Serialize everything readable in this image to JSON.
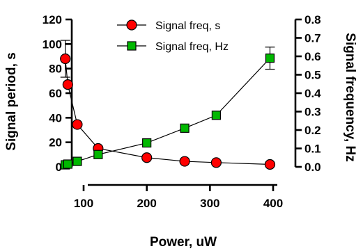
{
  "chart_data": {
    "type": "scatter",
    "xlabel": "Power, uW",
    "ylabel": "Signal period, s",
    "y2label": "Signal frequency,  Hz",
    "xlim": [
      50,
      400
    ],
    "ylim": [
      0,
      120
    ],
    "y2lim": [
      0,
      0.8
    ],
    "xticks": [
      100,
      200,
      300,
      400
    ],
    "yticks": [
      0,
      20,
      40,
      60,
      80,
      100,
      120
    ],
    "y2ticks": [
      "0.0",
      "0.1",
      "0.2",
      "0.3",
      "0.4",
      "0.5",
      "0.6",
      "0.7",
      "0.8"
    ],
    "grid": false,
    "legend_position": "top-center",
    "series": [
      {
        "name": "Signal freq, s",
        "axis": "left",
        "marker": "circle",
        "color": "#ff0000",
        "x": [
          71,
          75,
          90,
          123,
          200,
          260,
          310,
          395
        ],
        "y": [
          88,
          67,
          34.5,
          15,
          7.5,
          4.5,
          3.5,
          2
        ],
        "error": [
          15,
          0,
          0,
          0,
          0,
          0,
          0,
          0
        ]
      },
      {
        "name": "Signal freq, Hz",
        "axis": "right",
        "marker": "square",
        "color": "#00b800",
        "x": [
          71,
          75,
          90,
          123,
          200,
          260,
          310,
          395
        ],
        "y": [
          0.011,
          0.015,
          0.03,
          0.067,
          0.13,
          0.21,
          0.28,
          0.59
        ],
        "error": [
          0,
          0,
          0,
          0,
          0,
          0,
          0,
          0.06
        ]
      }
    ]
  }
}
